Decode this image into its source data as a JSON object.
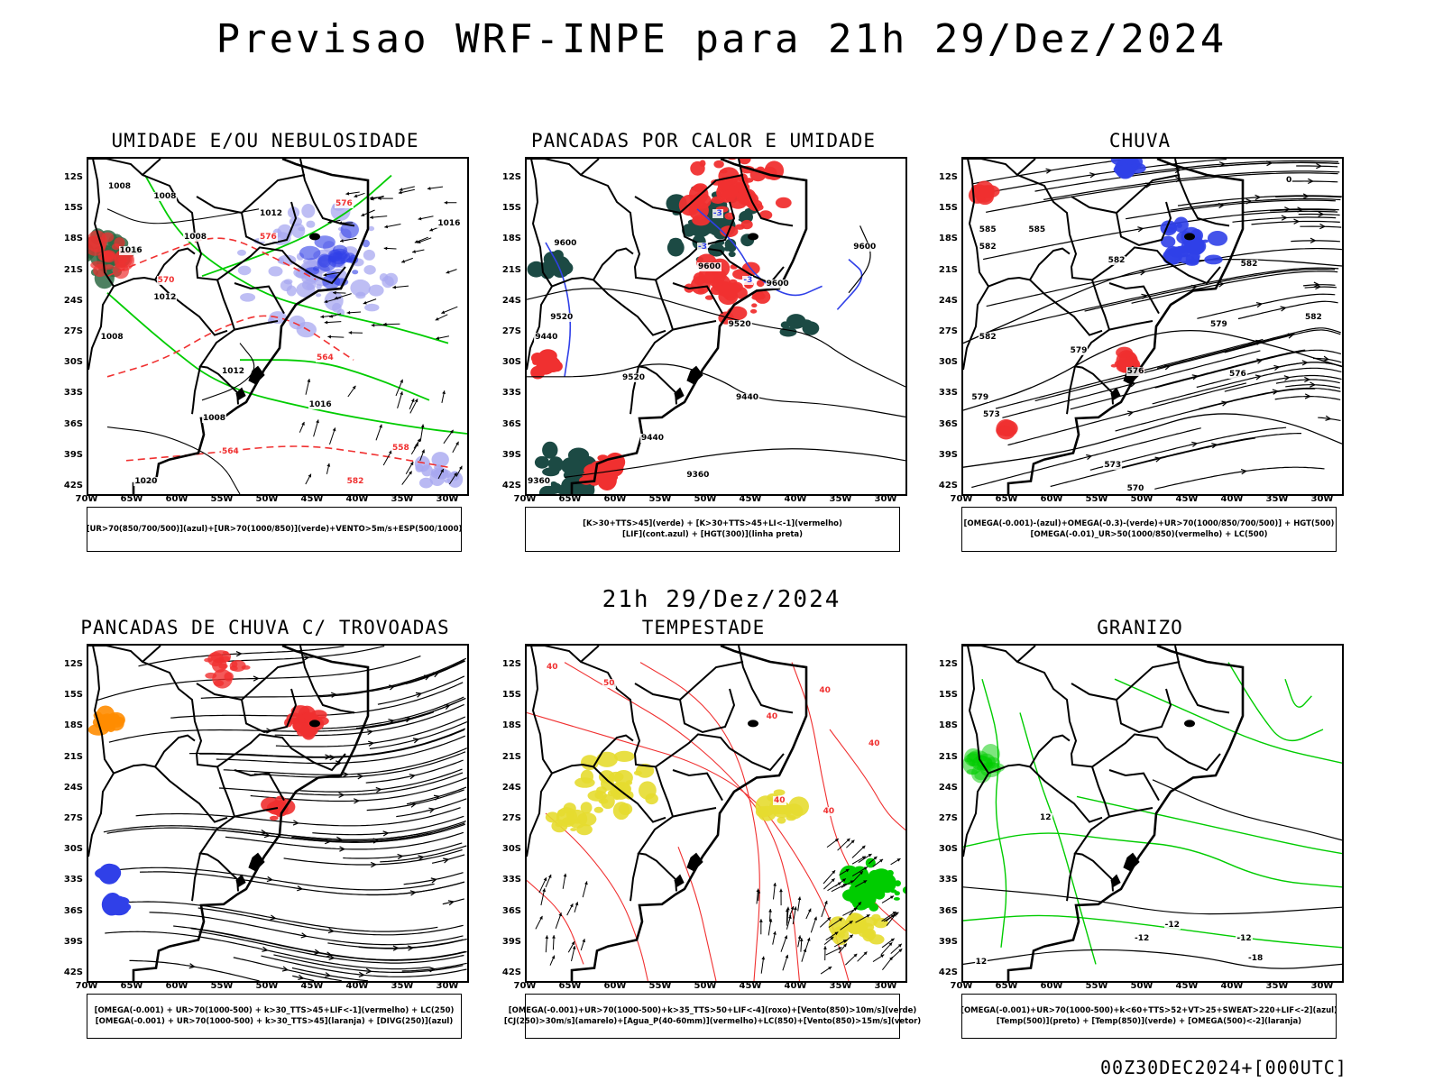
{
  "header": {
    "title": "Previsao WRF-INPE  para 21h 29/Dez/2024"
  },
  "mid_title": "21h 29/Dez/2024",
  "footer_id": "00Z30DEC2024+[000UTC]",
  "axes": {
    "lat_labels": [
      "12S",
      "15S",
      "18S",
      "21S",
      "24S",
      "27S",
      "30S",
      "33S",
      "36S",
      "39S",
      "42S"
    ],
    "lon_labels": [
      "70W",
      "65W",
      "60W",
      "55W",
      "50W",
      "45W",
      "40W",
      "35W",
      "30W"
    ]
  },
  "colors": {
    "blue": "#3040e8",
    "green": "#00cc00",
    "red": "#f03030",
    "dark_teal": "#1c4a44",
    "yellow": "#e6dc30",
    "orange": "#ff8c00",
    "lavender": "#a8a8f0"
  },
  "panels": [
    {
      "title": "UMIDADE E/OU NEBULOSIDADE",
      "legend": [
        "[UR>70(850/700/500)](azul)+[UR>70(1000/850)](verde)+VENTO>5m/s+ESP(500/1000)"
      ],
      "labels": [
        "1008",
        "1008",
        "1012",
        "1016",
        "1016",
        "1008",
        "1012",
        "1008",
        "1012",
        "1016",
        "1008",
        "1020",
        "570",
        "576",
        "576",
        "558",
        "582",
        "564",
        "564"
      ]
    },
    {
      "title": "PANCADAS POR CALOR E UMIDADE",
      "legend": [
        "[K>30+TTS>45](verde) + [K>30+TTS>45+LI<-1](vermelho)",
        "[LIF](cont.azul) + [HGT(300)](linha preta)"
      ],
      "labels": [
        "9600",
        "9600",
        "9600",
        "9600",
        "9520",
        "9520",
        "9520",
        "9440",
        "9440",
        "9440",
        "9360",
        "9360",
        "-3",
        "-3",
        "-3"
      ]
    },
    {
      "title": "CHUVA",
      "legend": [
        "[OMEGA(-0.001)-(azul)+OMEGA(-0.3)-(verde)+UR>70(1000/850/700/500)] + HGT(500)",
        "[OMEGA(-0.01)_UR>50(1000/850)(vermelho) + LC(500)"
      ],
      "labels": [
        "585",
        "585",
        "582",
        "582",
        "582",
        "582",
        "579",
        "579",
        "579",
        "576",
        "576",
        "573",
        "573",
        "570",
        "582",
        "0"
      ]
    },
    {
      "title": "PANCADAS DE CHUVA C/ TROVOADAS",
      "legend": [
        "[OMEGA(-0.001) + UR>70(1000-500) + k>30_TTS>45+LIF<-1](vermelho) + LC(250)",
        "[OMEGA(-0.001) + UR>70(1000-500) + k>30_TTS>45](laranja) + [DIVG(250)](azul)"
      ],
      "labels": []
    },
    {
      "title": "TEMPESTADE",
      "legend": [
        "[OMEGA(-0.001)+UR>70(1000-500)+k>35_TTS>50+LIF<-4](roxo)+[Vento(850)>10m/s](verde)",
        "[CJ(250)>30m/s](amarelo)+[Agua_P(40-60mm)](vermelho)+LC(850)+[Vento(850)>15m/s](vetor)"
      ],
      "labels": [
        "40",
        "50",
        "40",
        "40",
        "40",
        "40",
        "40"
      ]
    },
    {
      "title": "GRANIZO",
      "legend": [
        "[OMEGA(-0.001)+UR>70(1000-500)+k<60+TTS>52+VT>25+SWEAT>220+LIF<-2](azul)",
        "[Temp(500)](preto) + [Temp(850)](verde) + [OMEGA(500)<-2](laranja)"
      ],
      "labels": [
        "12",
        "-12",
        "-12",
        "-12",
        "-18",
        "12"
      ]
    }
  ]
}
